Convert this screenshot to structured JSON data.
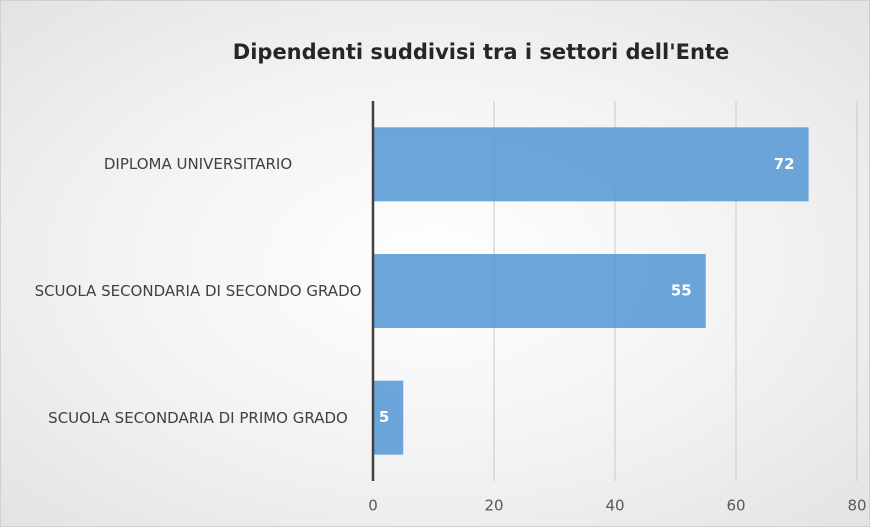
{
  "chart_data": {
    "type": "bar",
    "orientation": "horizontal",
    "title": "Dipendenti suddivisi tra i settori dell'Ente",
    "categories": [
      "DIPLOMA UNIVERSITARIO",
      "SCUOLA SECONDARIA DI SECONDO GRADO",
      "SCUOLA SECONDARIA DI PRIMO GRADO"
    ],
    "values": [
      72,
      55,
      5
    ],
    "color": "#5b9bd5",
    "xlim": [
      0,
      80
    ],
    "xticks": [
      0,
      20,
      40,
      60,
      80
    ],
    "grid": true
  }
}
